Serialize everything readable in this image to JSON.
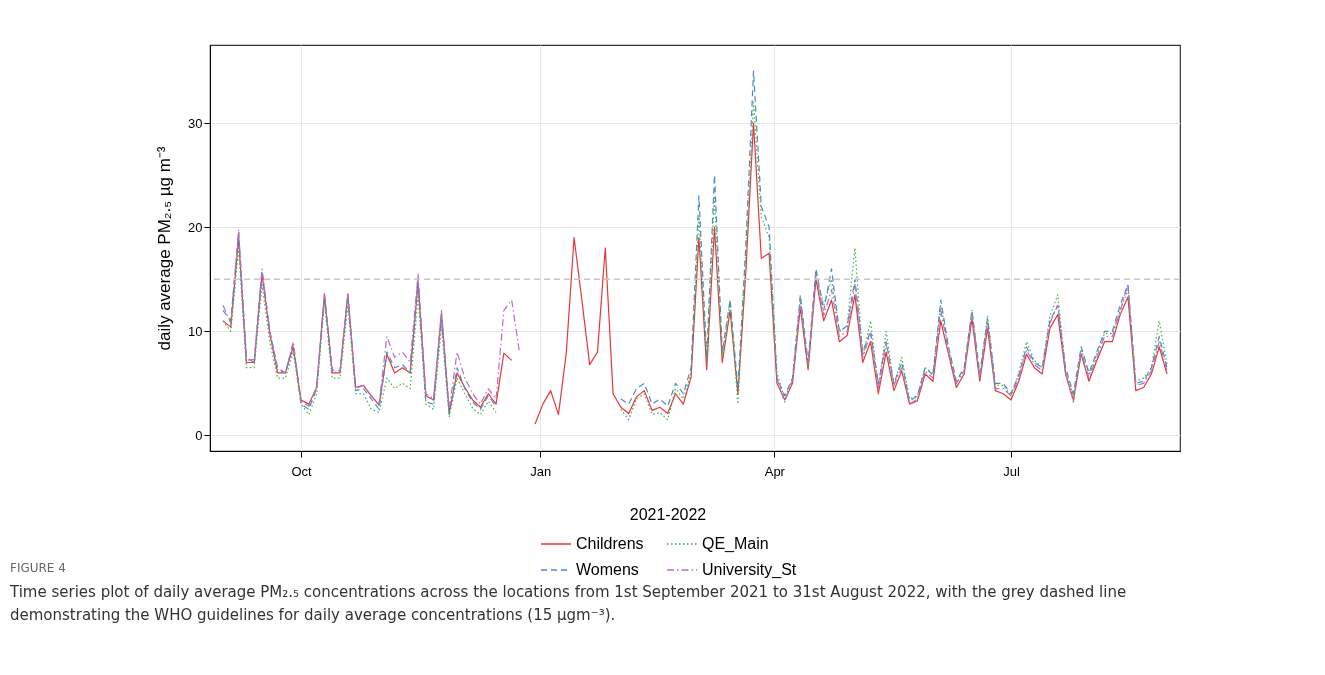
{
  "chart_data": {
    "type": "line",
    "ylabel": "daily average PM₂.₅ µg m⁻³",
    "legend_title": "2021-2022",
    "legend": "bottom",
    "grid": true,
    "xlim": [
      "2021-08-27",
      "2022-09-04"
    ],
    "xticks": [
      {
        "value": "2021-10-01",
        "label": "Oct"
      },
      {
        "value": "2022-01-01",
        "label": "Jan"
      },
      {
        "value": "2022-04-01",
        "label": "Apr"
      },
      {
        "value": "2022-07-01",
        "label": "Jul"
      }
    ],
    "ylim": [
      -1.5,
      37.5
    ],
    "yticks": [
      0,
      10,
      20,
      30
    ],
    "ref_lines": [
      {
        "axis": "y",
        "value": 15,
        "color": "#c8c8c8",
        "line_style": "dashed"
      }
    ],
    "annotations": [
      "FIGURE 4",
      "Time series plot of daily average PM₂.₅ concentrations across the locations from 1st September 2021 to 31st August 2022, with the grey dashed line demonstrating the WHO guidelines for daily average concentrations (15 µgm⁻³)."
    ],
    "x": [
      "2021-09-01",
      "2021-09-04",
      "2021-09-07",
      "2021-09-10",
      "2021-09-13",
      "2021-09-16",
      "2021-09-19",
      "2021-09-22",
      "2021-09-25",
      "2021-09-28",
      "2021-10-01",
      "2021-10-04",
      "2021-10-07",
      "2021-10-10",
      "2021-10-13",
      "2021-10-16",
      "2021-10-19",
      "2021-10-22",
      "2021-10-25",
      "2021-10-28",
      "2021-10-31",
      "2021-11-03",
      "2021-11-06",
      "2021-11-09",
      "2021-11-12",
      "2021-11-15",
      "2021-11-18",
      "2021-11-21",
      "2021-11-24",
      "2021-11-27",
      "2021-11-30",
      "2021-12-03",
      "2021-12-06",
      "2021-12-09",
      "2021-12-12",
      "2021-12-15",
      "2021-12-18",
      "2021-12-21",
      "2021-12-24",
      "2021-12-27",
      "2021-12-30",
      "2022-01-02",
      "2022-01-05",
      "2022-01-08",
      "2022-01-11",
      "2022-01-14",
      "2022-01-17",
      "2022-01-20",
      "2022-01-23",
      "2022-01-26",
      "2022-01-29",
      "2022-02-01",
      "2022-02-04",
      "2022-02-07",
      "2022-02-10",
      "2022-02-13",
      "2022-02-16",
      "2022-02-19",
      "2022-02-22",
      "2022-02-25",
      "2022-02-28",
      "2022-03-03",
      "2022-03-06",
      "2022-03-09",
      "2022-03-12",
      "2022-03-15",
      "2022-03-18",
      "2022-03-21",
      "2022-03-24",
      "2022-03-27",
      "2022-03-30",
      "2022-04-02",
      "2022-04-05",
      "2022-04-08",
      "2022-04-11",
      "2022-04-14",
      "2022-04-17",
      "2022-04-20",
      "2022-04-23",
      "2022-04-26",
      "2022-04-29",
      "2022-05-02",
      "2022-05-05",
      "2022-05-08",
      "2022-05-11",
      "2022-05-14",
      "2022-05-17",
      "2022-05-20",
      "2022-05-23",
      "2022-05-26",
      "2022-05-29",
      "2022-06-01",
      "2022-06-04",
      "2022-06-07",
      "2022-06-10",
      "2022-06-13",
      "2022-06-16",
      "2022-06-19",
      "2022-06-22",
      "2022-06-25",
      "2022-06-28",
      "2022-07-01",
      "2022-07-04",
      "2022-07-07",
      "2022-07-10",
      "2022-07-13",
      "2022-07-16",
      "2022-07-19",
      "2022-07-22",
      "2022-07-25",
      "2022-07-28",
      "2022-07-31",
      "2022-08-03",
      "2022-08-06",
      "2022-08-09",
      "2022-08-12",
      "2022-08-15",
      "2022-08-18",
      "2022-08-21",
      "2022-08-24",
      "2022-08-27",
      "2022-08-30"
    ],
    "series": [
      {
        "name": "Childrens",
        "color": "#e8373a",
        "line_style": "solid",
        "values": [
          11,
          10.4,
          19,
          7,
          7,
          15.5,
          9.8,
          6,
          6,
          8.5,
          3.4,
          3,
          4.6,
          13.6,
          6,
          6,
          13.6,
          4.6,
          4.8,
          3.8,
          2.9,
          7.8,
          6,
          6.5,
          6,
          14.7,
          3.8,
          3.4,
          11.7,
          2.2,
          6,
          4.6,
          3.4,
          2.7,
          4,
          3,
          7.9,
          7.2,
          null,
          null,
          1.1,
          3,
          4.3,
          2,
          7.9,
          19,
          13,
          6.8,
          8,
          18,
          4,
          2.7,
          2.1,
          3.7,
          4.3,
          2.4,
          2.7,
          2.1,
          4,
          3,
          5.6,
          19,
          6.3,
          20,
          7,
          12,
          4,
          15.5,
          30,
          17,
          17.5,
          5,
          3.4,
          5,
          12.3,
          6.3,
          15,
          11,
          13,
          9,
          9.6,
          13.5,
          7,
          9,
          4,
          8,
          4.3,
          6.2,
          3,
          3.3,
          5.9,
          5.2,
          11,
          7.8,
          4.6,
          5.9,
          11.2,
          5.2,
          10.3,
          4.3,
          4,
          3.4,
          5.2,
          7.8,
          6.5,
          5.9,
          10.3,
          11.6,
          5.9,
          3.4,
          7.8,
          5.2,
          7.2,
          9,
          9,
          11.6,
          13.3,
          4.3,
          4.6,
          5.9,
          8.5,
          5.9
        ]
      },
      {
        "name": "Womens",
        "color": "#4a8bc6",
        "line_style": "dashed",
        "values": [
          12,
          11,
          19.5,
          7.5,
          7,
          15.8,
          10,
          6.5,
          6,
          8.8,
          3,
          2.5,
          4.5,
          13.3,
          6.3,
          6.2,
          13.4,
          4.3,
          4.5,
          3.5,
          2.5,
          8,
          6.5,
          6.8,
          6,
          15,
          3.2,
          3,
          11.5,
          2,
          6.5,
          4.5,
          3.2,
          2.5,
          3.8,
          2.8,
          null,
          null,
          null,
          null,
          null,
          null,
          null,
          null,
          null,
          null,
          null,
          null,
          null,
          null,
          null,
          3.5,
          3,
          4.5,
          5,
          3,
          3.5,
          2.8,
          5,
          4,
          6.5,
          23,
          7.5,
          25,
          8,
          13,
          4.5,
          18,
          35,
          22,
          20,
          5.5,
          3.8,
          5.5,
          13.5,
          7,
          16,
          12,
          16,
          10,
          10.5,
          15,
          8,
          10,
          5,
          9,
          5,
          7,
          3.3,
          3.8,
          6.5,
          5.8,
          13,
          8.5,
          5.2,
          6.5,
          12,
          6,
          11.2,
          5,
          5,
          4,
          5.8,
          8.5,
          7,
          6.5,
          11,
          12.5,
          6.5,
          4,
          8.5,
          6,
          8,
          10,
          10,
          12.5,
          14.5,
          5,
          5.2,
          6.5,
          9.5,
          6.5
        ]
      },
      {
        "name": "QE_Main",
        "color": "#3fae49",
        "line_style": "dotted",
        "values": [
          11,
          10,
          18,
          6.5,
          6.5,
          14.5,
          9,
          5.5,
          5.5,
          8,
          3,
          2,
          4,
          12.8,
          5.5,
          5.5,
          12.5,
          4,
          4,
          2.5,
          2.2,
          5.5,
          4.5,
          5,
          4.5,
          13.5,
          3,
          2.5,
          10.5,
          1.8,
          5.5,
          4,
          2.6,
          2,
          3.3,
          2.2,
          null,
          null,
          null,
          null,
          null,
          null,
          null,
          null,
          null,
          null,
          null,
          null,
          null,
          null,
          null,
          2.5,
          1.5,
          3.5,
          4,
          2,
          2.2,
          1.5,
          4.5,
          3.5,
          6,
          21,
          7,
          23,
          7.5,
          13,
          3,
          17,
          32,
          21,
          19,
          6,
          3.5,
          5.5,
          13,
          6.5,
          15.5,
          12.5,
          15,
          10,
          10.5,
          18,
          7.5,
          11,
          4.5,
          10,
          4.8,
          7.5,
          3.5,
          3.8,
          6.5,
          6,
          12.5,
          8.3,
          5,
          6.2,
          12,
          5.5,
          11.5,
          4.8,
          4.8,
          3.8,
          6,
          9,
          7.2,
          6.5,
          11.5,
          13.5,
          6.2,
          3.8,
          8.3,
          5.8,
          7.8,
          9.8,
          9.8,
          12,
          14,
          5.2,
          5.5,
          6.5,
          11,
          6.8
        ]
      },
      {
        "name": "University_St",
        "color": "#b56fc2",
        "line_style": "dashdot",
        "values": [
          12.5,
          10.8,
          19.8,
          7.2,
          7.3,
          16,
          10,
          6.3,
          6,
          9,
          3.3,
          2.8,
          4.7,
          13.5,
          6,
          6.2,
          13.5,
          4.5,
          4.8,
          3.8,
          3,
          9.5,
          7.5,
          8,
          7,
          15.5,
          4,
          3.5,
          12,
          2.5,
          8,
          5.5,
          4,
          3,
          4.5,
          3.5,
          12,
          13,
          8,
          null,
          null,
          null,
          null,
          null,
          null,
          null,
          null,
          null,
          null,
          null,
          null,
          null,
          null,
          null,
          null,
          null,
          null,
          null,
          null,
          null,
          null,
          null,
          null,
          null,
          null,
          null,
          null,
          null,
          null,
          null,
          null,
          5.5,
          3.2,
          5.3,
          12.8,
          6.8,
          15.5,
          11.5,
          14,
          9.5,
          10,
          14.5,
          7.5,
          9.8,
          4.5,
          8.8,
          4.8,
          6.5,
          3,
          3.5,
          6.2,
          5.5,
          12,
          8,
          5,
          6.2,
          11.8,
          5.5,
          10.8,
          4.5,
          4.5,
          3.8,
          5.5,
          8.2,
          6.8,
          6.2,
          10.8,
          12.5,
          6,
          3.2,
          8,
          5.5,
          7.5,
          9.5,
          9.5,
          12,
          14.5,
          4.8,
          5,
          6.2,
          9,
          6.2
        ]
      }
    ]
  }
}
